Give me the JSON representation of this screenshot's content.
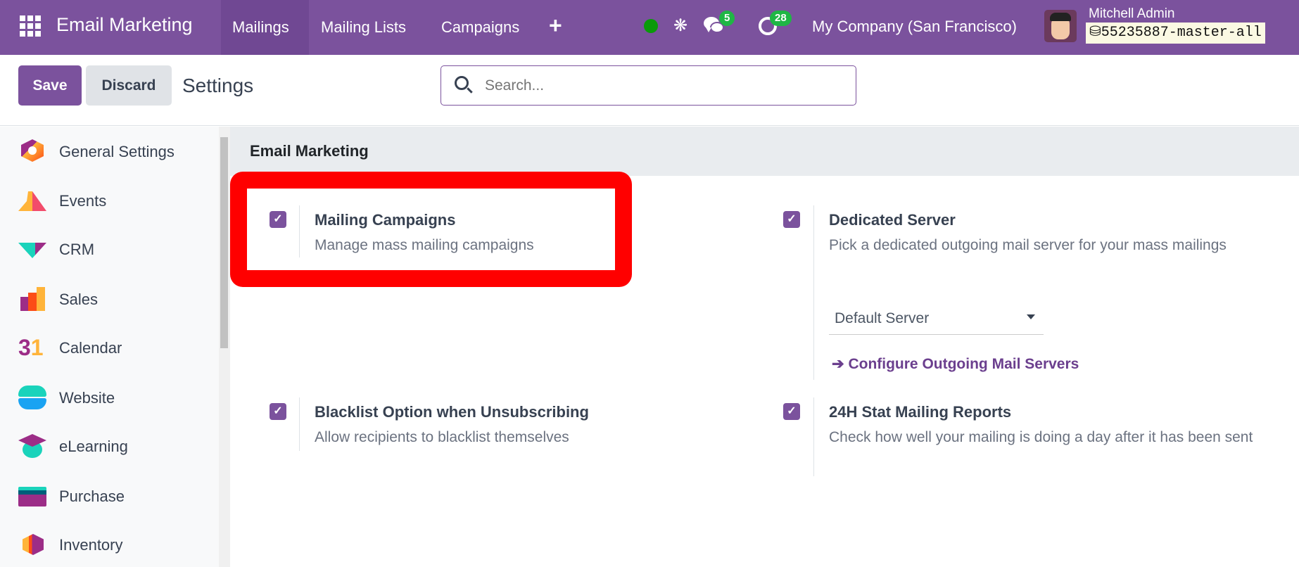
{
  "navbar": {
    "app_title": "Email Marketing",
    "menu": [
      "Mailings",
      "Mailing Lists",
      "Campaigns"
    ],
    "active_menu": "Mailings",
    "messages_count": "5",
    "activities_count": "28",
    "company": "My Company (San Francisco)",
    "user_name": "Mitchell Admin",
    "database": "55235887-master-all",
    "accent": "#7b529d"
  },
  "control_panel": {
    "save_label": "Save",
    "discard_label": "Discard",
    "breadcrumb": "Settings",
    "search_placeholder": "Search..."
  },
  "sidebar": {
    "items": [
      {
        "label": "General Settings",
        "icon": "general-settings-icon"
      },
      {
        "label": "Events",
        "icon": "events-icon"
      },
      {
        "label": "CRM",
        "icon": "crm-icon"
      },
      {
        "label": "Sales",
        "icon": "sales-icon"
      },
      {
        "label": "Calendar",
        "icon": "calendar-icon"
      },
      {
        "label": "Website",
        "icon": "website-icon"
      },
      {
        "label": "eLearning",
        "icon": "elearning-icon"
      },
      {
        "label": "Purchase",
        "icon": "purchase-icon"
      },
      {
        "label": "Inventory",
        "icon": "inventory-icon"
      }
    ]
  },
  "section": {
    "title": "Email Marketing",
    "settings": [
      {
        "title": "Mailing Campaigns",
        "desc": "Manage mass mailing campaigns",
        "checked": true
      },
      {
        "title": "Dedicated Server",
        "desc": "Pick a dedicated outgoing mail server for your mass mailings",
        "checked": true,
        "select_value": "Default Server",
        "link": "Configure Outgoing Mail Servers"
      },
      {
        "title": "Blacklist Option when Unsubscribing",
        "desc": "Allow recipients to blacklist themselves",
        "checked": true
      },
      {
        "title": "24H Stat Mailing Reports",
        "desc": "Check how well your mailing is doing a day after it has been sent",
        "checked": true
      }
    ]
  },
  "highlight_color": "#ff0000"
}
